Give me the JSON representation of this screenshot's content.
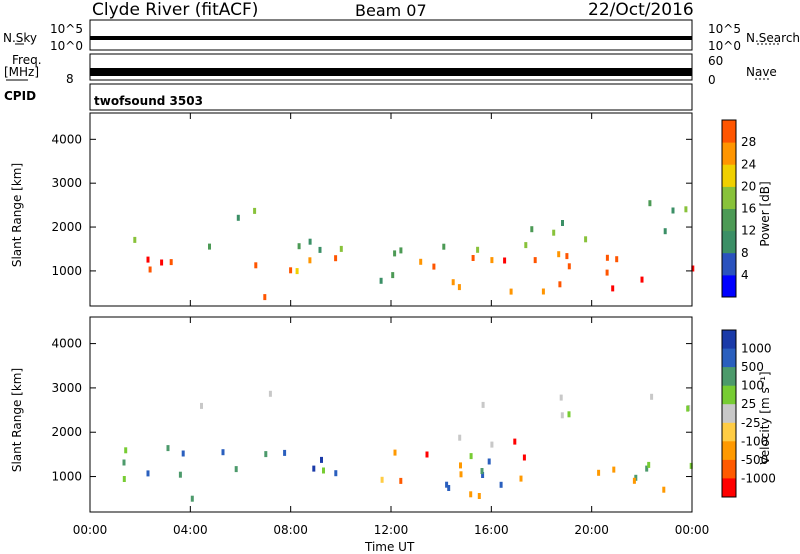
{
  "header": {
    "station": "Clyde River (fitACF)",
    "beam": "Beam 07",
    "date": "22/Oct/2016"
  },
  "summary": {
    "nsky_label": "N.Sky",
    "nsky_ticks": [
      "10^5",
      "10^0"
    ],
    "nsearch_label": "N.Search",
    "nsearch_ticks": [
      "10^5",
      "10^0"
    ],
    "freq_label_1": "Freq.",
    "freq_label_2": "[MHz]",
    "freq_ticks": [
      "8"
    ],
    "nave_label": "Nave",
    "nave_ticks": [
      "60",
      "0"
    ],
    "cpid_label": "CPID",
    "cpid_value": "twofsound 3503"
  },
  "colors": {
    "power": [
      "#0000ff",
      "#2a52be",
      "#3b8f66",
      "#4c9a55",
      "#88c23a",
      "#f0d000",
      "#ff9500",
      "#ff5500",
      "#ff0000"
    ],
    "velocity": [
      "#ff0000",
      "#ff5a00",
      "#ff9900",
      "#ffcc44",
      "#c8c8c8",
      "#77cc33",
      "#4c9a6b",
      "#2a5fbe",
      "#1a3aa8"
    ]
  },
  "chart_data": [
    {
      "type": "heatmap",
      "panel": "power",
      "ylabel": "Slant Range [km]",
      "yticks": [
        "1000",
        "2000",
        "3000",
        "4000"
      ],
      "ylim": [
        200,
        4600
      ],
      "xlim": [
        0,
        24
      ],
      "colorbar_label": "Power [dB]",
      "colorbar_ticks": [
        "4",
        "8",
        "12",
        "16",
        "20",
        "24",
        "28"
      ],
      "colorbar_range": [
        0,
        32
      ]
    },
    {
      "type": "heatmap",
      "panel": "velocity",
      "ylabel": "Slant Range [km]",
      "yticks": [
        "1000",
        "2000",
        "3000",
        "4000"
      ],
      "ylim": [
        200,
        4600
      ],
      "xlim": [
        0,
        24
      ],
      "xlabel": "Time UT",
      "xticks": [
        "00:00",
        "04:00",
        "08:00",
        "12:00",
        "16:00",
        "20:00",
        "00:00"
      ],
      "colorbar_label": "Velocity [m s⁻¹]",
      "colorbar_ticks": [
        "1000",
        "500",
        "100",
        "25",
        "-25",
        "-100",
        "-500",
        "-1000"
      ]
    }
  ]
}
